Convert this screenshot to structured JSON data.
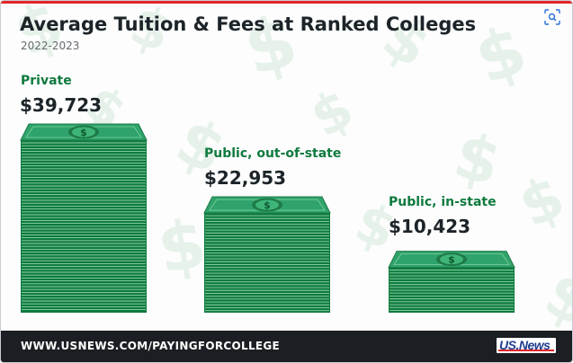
{
  "header": {
    "title": "Average Tuition & Fees at Ranked Colleges",
    "subtitle": "2022-2023"
  },
  "toolbar": {
    "lens_icon": "lens-search-icon"
  },
  "chart_data": {
    "type": "bar",
    "title": "Average Tuition & Fees at Ranked Colleges",
    "subtitle": "2022-2023",
    "categories": [
      "Private",
      "Public, out-of-state",
      "Public, in-state"
    ],
    "values": [
      39723,
      22953,
      10423
    ],
    "value_labels": [
      "$39,723",
      "$22,953",
      "$10,423"
    ],
    "ylim": [
      0,
      39723
    ],
    "grid": false,
    "mark_style": "stack-of-dollar-bills",
    "colors": {
      "bill_top": "#2fa36b",
      "bill_top_edge": "#1e7a47",
      "stack": "#0f7a3f",
      "stack_line": "#8fd3a8",
      "label": "#0f7a3f",
      "value": "#1c2429"
    }
  },
  "footer": {
    "url": "WWW.USNEWS.COM/PAYINGFORCOLLEGE",
    "logo_text": "US.News"
  },
  "colors": {
    "accent_red": "#e2252a",
    "footer_bg": "#1b1e22",
    "logo_blue": "#1d3c8f",
    "pattern": "#e6f1ea"
  }
}
